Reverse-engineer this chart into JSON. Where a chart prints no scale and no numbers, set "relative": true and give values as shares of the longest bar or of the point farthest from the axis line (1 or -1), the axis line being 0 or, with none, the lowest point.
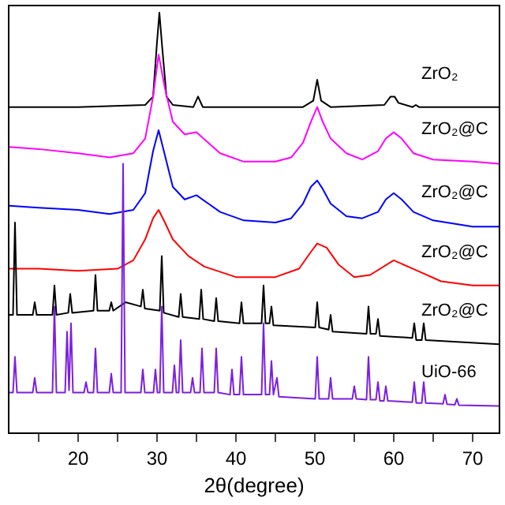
{
  "chart_data": {
    "type": "line",
    "relative": true,
    "xlabel": "2θ(degree)",
    "xlim": [
      11.3,
      73.3
    ],
    "xticks": [
      {
        "value": 15,
        "label": null
      },
      20,
      {
        "value": 25,
        "label": null
      },
      30,
      {
        "value": 35,
        "label": null
      },
      40,
      {
        "value": 45,
        "label": null
      },
      50,
      {
        "value": 55,
        "label": null
      },
      60,
      {
        "value": 65,
        "label": null
      },
      70
    ],
    "grid": false,
    "legend": false,
    "marker": "none",
    "line_style": "solid",
    "series": [
      {
        "name": "ZrO₂",
        "color": "#000000",
        "x": [
          11.3,
          20,
          28.5,
          29.5,
          30.0,
          30.3,
          30.6,
          31.2,
          32,
          34.6,
          35.2,
          35.8,
          40,
          48.5,
          49.8,
          50.3,
          50.8,
          52,
          58.8,
          59.6,
          60.1,
          60.6,
          62.4,
          62.8,
          63.2,
          73.3
        ],
        "values": [
          0.775,
          0.775,
          0.78,
          0.8,
          0.93,
          1.0,
          0.93,
          0.8,
          0.78,
          0.775,
          0.8,
          0.775,
          0.775,
          0.775,
          0.79,
          0.84,
          0.79,
          0.775,
          0.78,
          0.8,
          0.8,
          0.785,
          0.775,
          0.78,
          0.775,
          0.775
        ]
      },
      {
        "name": "ZrO₂@C",
        "color": "#ff00ff",
        "x": [
          11.3,
          15,
          20,
          24,
          27,
          28.5,
          29.5,
          30.2,
          31,
          32,
          33.5,
          35,
          36.5,
          38,
          41,
          45,
          47,
          48.5,
          49.5,
          50.3,
          51,
          52,
          54,
          56,
          58,
          59,
          60,
          61,
          62.5,
          65,
          70,
          73.3
        ],
        "values": [
          0.68,
          0.675,
          0.665,
          0.655,
          0.665,
          0.7,
          0.8,
          0.9,
          0.82,
          0.74,
          0.71,
          0.715,
          0.69,
          0.665,
          0.645,
          0.645,
          0.655,
          0.69,
          0.74,
          0.775,
          0.74,
          0.7,
          0.665,
          0.65,
          0.67,
          0.7,
          0.715,
          0.7,
          0.665,
          0.65,
          0.645,
          0.64
        ]
      },
      {
        "name": "ZrO₂@C",
        "color": "#0000ff",
        "x": [
          11.3,
          15,
          20,
          24,
          27,
          28.5,
          29.5,
          30.2,
          31,
          32,
          33.5,
          35,
          36.5,
          38,
          41,
          45,
          47,
          48.5,
          49.5,
          50.3,
          51,
          52,
          54,
          56,
          58,
          59,
          60,
          61,
          62.5,
          65,
          70,
          73.3
        ],
        "values": [
          0.54,
          0.535,
          0.53,
          0.52,
          0.53,
          0.57,
          0.67,
          0.72,
          0.66,
          0.585,
          0.555,
          0.565,
          0.545,
          0.525,
          0.505,
          0.5,
          0.51,
          0.545,
          0.585,
          0.6,
          0.58,
          0.545,
          0.515,
          0.51,
          0.525,
          0.555,
          0.57,
          0.555,
          0.525,
          0.505,
          0.49,
          0.49
        ]
      },
      {
        "name": "ZrO₂@C",
        "color": "#ff0000",
        "x": [
          11.3,
          15,
          20,
          25,
          27,
          28.5,
          29.5,
          30.2,
          31,
          32,
          34,
          36,
          40,
          45,
          48,
          49.5,
          50.3,
          51.5,
          53,
          55,
          57,
          60,
          63,
          66,
          70,
          73.3
        ],
        "values": [
          0.39,
          0.39,
          0.385,
          0.39,
          0.41,
          0.46,
          0.51,
          0.53,
          0.5,
          0.46,
          0.42,
          0.395,
          0.37,
          0.37,
          0.39,
          0.43,
          0.45,
          0.44,
          0.4,
          0.37,
          0.375,
          0.41,
          0.385,
          0.36,
          0.35,
          0.35
        ]
      },
      {
        "name": "ZrO₂@C",
        "color": "#000000",
        "x": [
          11.3,
          11.75,
          12,
          12.25,
          14.25,
          14.5,
          14.75,
          16.75,
          17,
          17.25,
          18.75,
          19,
          19.25,
          21.95,
          22.2,
          22.45,
          23.95,
          24.2,
          24.45,
          26,
          27.95,
          28.2,
          28.45,
          30.35,
          30.6,
          30.85,
          32.75,
          33,
          33.25,
          35.35,
          35.6,
          35.85,
          37.25,
          37.5,
          37.75,
          40.45,
          40.7,
          40.95,
          43.25,
          43.5,
          43.75,
          44.25,
          44.5,
          44.75,
          50.05,
          50.3,
          50.55,
          51.75,
          52,
          52.25,
          56.55,
          56.8,
          57.05,
          57.75,
          58,
          58.25,
          62.35,
          62.6,
          62.85,
          63.55,
          63.8,
          64.05,
          73.3
        ],
        "values": [
          0.28,
          0.28,
          0.5,
          0.28,
          0.28,
          0.31,
          0.28,
          0.28,
          0.35,
          0.28,
          0.285,
          0.33,
          0.285,
          0.29,
          0.375,
          0.29,
          0.29,
          0.31,
          0.29,
          0.31,
          0.3,
          0.34,
          0.295,
          0.29,
          0.42,
          0.285,
          0.275,
          0.33,
          0.275,
          0.27,
          0.34,
          0.27,
          0.265,
          0.32,
          0.265,
          0.26,
          0.31,
          0.26,
          0.26,
          0.35,
          0.26,
          0.26,
          0.3,
          0.255,
          0.25,
          0.31,
          0.25,
          0.245,
          0.28,
          0.24,
          0.235,
          0.3,
          0.235,
          0.235,
          0.27,
          0.23,
          0.225,
          0.26,
          0.22,
          0.22,
          0.26,
          0.22,
          0.21
        ]
      },
      {
        "name": "UiO-66",
        "color": "#7b1fe0",
        "x": [
          11.3,
          11.75,
          12,
          12.25,
          14.25,
          14.5,
          14.75,
          16.75,
          17,
          17.25,
          18.35,
          18.6,
          18.85,
          19.1,
          19.35,
          20.75,
          21,
          21.25,
          21.95,
          22.2,
          22.45,
          23.95,
          24.2,
          24.45,
          25.45,
          25.7,
          25.95,
          27.95,
          28.2,
          28.45,
          29.55,
          29.8,
          30.05,
          30.35,
          30.6,
          30.85,
          31.95,
          32.2,
          32.45,
          32.75,
          33,
          33.25,
          34.25,
          34.5,
          34.75,
          35.45,
          35.7,
          35.95,
          37.25,
          37.5,
          37.75,
          39.25,
          39.5,
          39.75,
          40.45,
          40.7,
          40.95,
          43.25,
          43.5,
          43.75,
          44.25,
          44.5,
          44.75,
          45.2,
          45.45,
          50.05,
          50.3,
          50.55,
          51.75,
          52,
          52.25,
          54.75,
          55,
          55.25,
          56.55,
          56.8,
          57.05,
          57.75,
          58,
          58.25,
          58.75,
          59,
          59.25,
          62.35,
          62.6,
          62.85,
          63.55,
          63.8,
          64.05,
          66.25,
          66.5,
          66.75,
          67.75,
          68,
          68.25,
          73.3
        ],
        "values": [
          0.095,
          0.095,
          0.18,
          0.095,
          0.095,
          0.13,
          0.095,
          0.095,
          0.3,
          0.095,
          0.095,
          0.24,
          0.1,
          0.26,
          0.095,
          0.095,
          0.12,
          0.095,
          0.095,
          0.2,
          0.095,
          0.095,
          0.14,
          0.095,
          0.095,
          0.64,
          0.095,
          0.095,
          0.15,
          0.095,
          0.095,
          0.15,
          0.095,
          0.095,
          0.3,
          0.095,
          0.095,
          0.16,
          0.095,
          0.095,
          0.22,
          0.095,
          0.095,
          0.13,
          0.095,
          0.095,
          0.2,
          0.095,
          0.095,
          0.2,
          0.095,
          0.09,
          0.15,
          0.09,
          0.09,
          0.18,
          0.09,
          0.09,
          0.26,
          0.09,
          0.09,
          0.17,
          0.09,
          0.13,
          0.085,
          0.08,
          0.18,
          0.08,
          0.08,
          0.13,
          0.08,
          0.08,
          0.11,
          0.08,
          0.078,
          0.18,
          0.078,
          0.078,
          0.12,
          0.075,
          0.075,
          0.11,
          0.075,
          0.072,
          0.12,
          0.07,
          0.07,
          0.12,
          0.07,
          0.068,
          0.09,
          0.067,
          0.066,
          0.08,
          0.065,
          0.063
        ]
      }
    ]
  }
}
